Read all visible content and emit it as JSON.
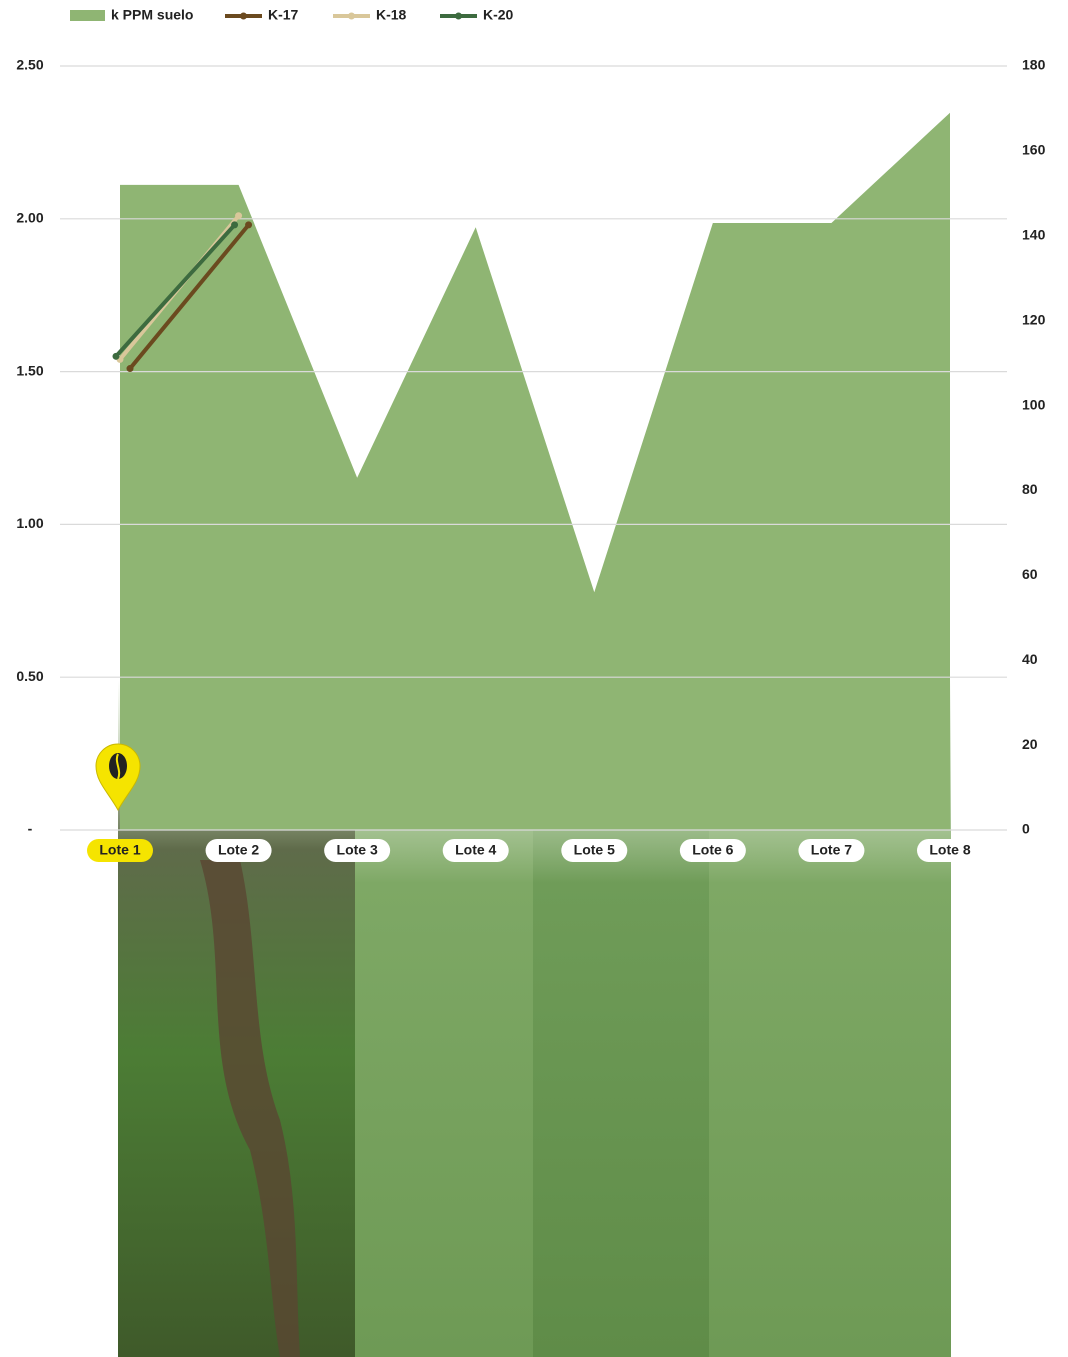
{
  "chart_data": {
    "type": "area",
    "categories": [
      "Lote 1",
      "Lote 2",
      "Lote 3",
      "Lote 4",
      "Lote 5",
      "Lote 6",
      "Lote 7",
      "Lote 8"
    ],
    "series": [
      {
        "name": "k PPM suelo",
        "type": "area",
        "axis": "y2",
        "color": "#8fb573",
        "values": [
          152,
          152,
          83,
          142,
          56,
          143,
          143,
          169
        ]
      },
      {
        "name": "K-17",
        "type": "line",
        "color": "#6b4a1f",
        "values": [
          1.51,
          1.98,
          null,
          null,
          null,
          null,
          null,
          null
        ]
      },
      {
        "name": "K-18",
        "type": "line",
        "color": "#d9c79a",
        "values": [
          1.54,
          2.01,
          null,
          null,
          null,
          null,
          null,
          null
        ]
      },
      {
        "name": "K-20",
        "type": "line",
        "color": "#3d6b3f",
        "values": [
          1.55,
          1.98,
          null,
          null,
          null,
          null,
          null,
          null
        ]
      }
    ],
    "ylim": [
      0,
      2.5
    ],
    "yticks": [
      {
        "value": 0,
        "label": "-"
      },
      {
        "value": 0.5,
        "label": "0.50"
      },
      {
        "value": 1,
        "label": "1.00"
      },
      {
        "value": 1.5,
        "label": "1.50"
      },
      {
        "value": 2,
        "label": "2.00"
      },
      {
        "value": 2.5,
        "label": "2.50"
      }
    ],
    "y2lim": [
      0,
      180
    ],
    "y2ticks": [
      0,
      20,
      40,
      60,
      80,
      100,
      120,
      140,
      160,
      180
    ],
    "grid": true,
    "legend": "top"
  }
}
